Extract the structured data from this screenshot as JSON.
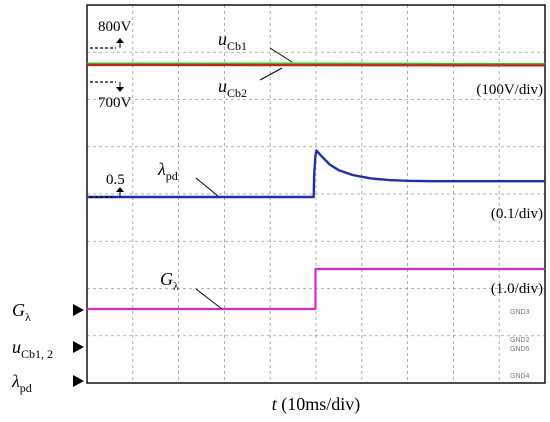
{
  "chart_data": {
    "type": "line",
    "grid": true,
    "x_divisions": 10,
    "y_divisions": 8,
    "xlabel": {
      "var": "t",
      "unit": " (10ms/div)"
    },
    "left_markers": [
      {
        "main": "G",
        "sub": "λ",
        "italic_main": true
      },
      {
        "main": "u",
        "sub": "Cb1, 2",
        "italic_main": true
      },
      {
        "main": "λ",
        "sub": "pd",
        "italic_main": true
      }
    ],
    "right_labels": [
      "(100V/div)",
      "(0.1/div)",
      "(1.0/div)"
    ],
    "gnd_labels": [
      "GND3",
      "GND2",
      "GND5",
      "GND4"
    ],
    "annotations": {
      "v800": "800V",
      "v700": "700V",
      "v05": "0.5",
      "ucb1": {
        "main": "u",
        "sub": "Cb1"
      },
      "ucb2": {
        "main": "u",
        "sub": "Cb2"
      },
      "lambda": {
        "main": "λ",
        "sub": "pd"
      },
      "g": {
        "main": "G",
        "sub": "λ"
      }
    },
    "series": [
      {
        "name": "uCb1",
        "color": "#35c21a",
        "unit": "V",
        "x": [
          0,
          10,
          50,
          90,
          100
        ],
        "y": [
          755,
          755,
          755,
          752,
          752
        ]
      },
      {
        "name": "uCb2",
        "color": "#c0271a",
        "unit": "V",
        "x": [
          0,
          10,
          50,
          90,
          100
        ],
        "y": [
          750,
          750,
          749,
          748,
          748
        ]
      },
      {
        "name": "λpd",
        "color": "#1f2fa8",
        "unit": "",
        "x": [
          0,
          49.5,
          49.6,
          49.9,
          50.1,
          51,
          53,
          55,
          58,
          62,
          66,
          70,
          75,
          80,
          90,
          100
        ],
        "y": [
          0.5,
          0.5,
          0.6,
          0.68,
          0.7,
          0.68,
          0.64,
          0.615,
          0.595,
          0.58,
          0.573,
          0.57,
          0.568,
          0.568,
          0.568,
          0.568
        ]
      },
      {
        "name": "Gλ",
        "color": "#d62bc8",
        "unit": "",
        "x": [
          0,
          49.9,
          49.9,
          100
        ],
        "y": [
          0,
          0,
          1,
          1
        ]
      }
    ]
  }
}
